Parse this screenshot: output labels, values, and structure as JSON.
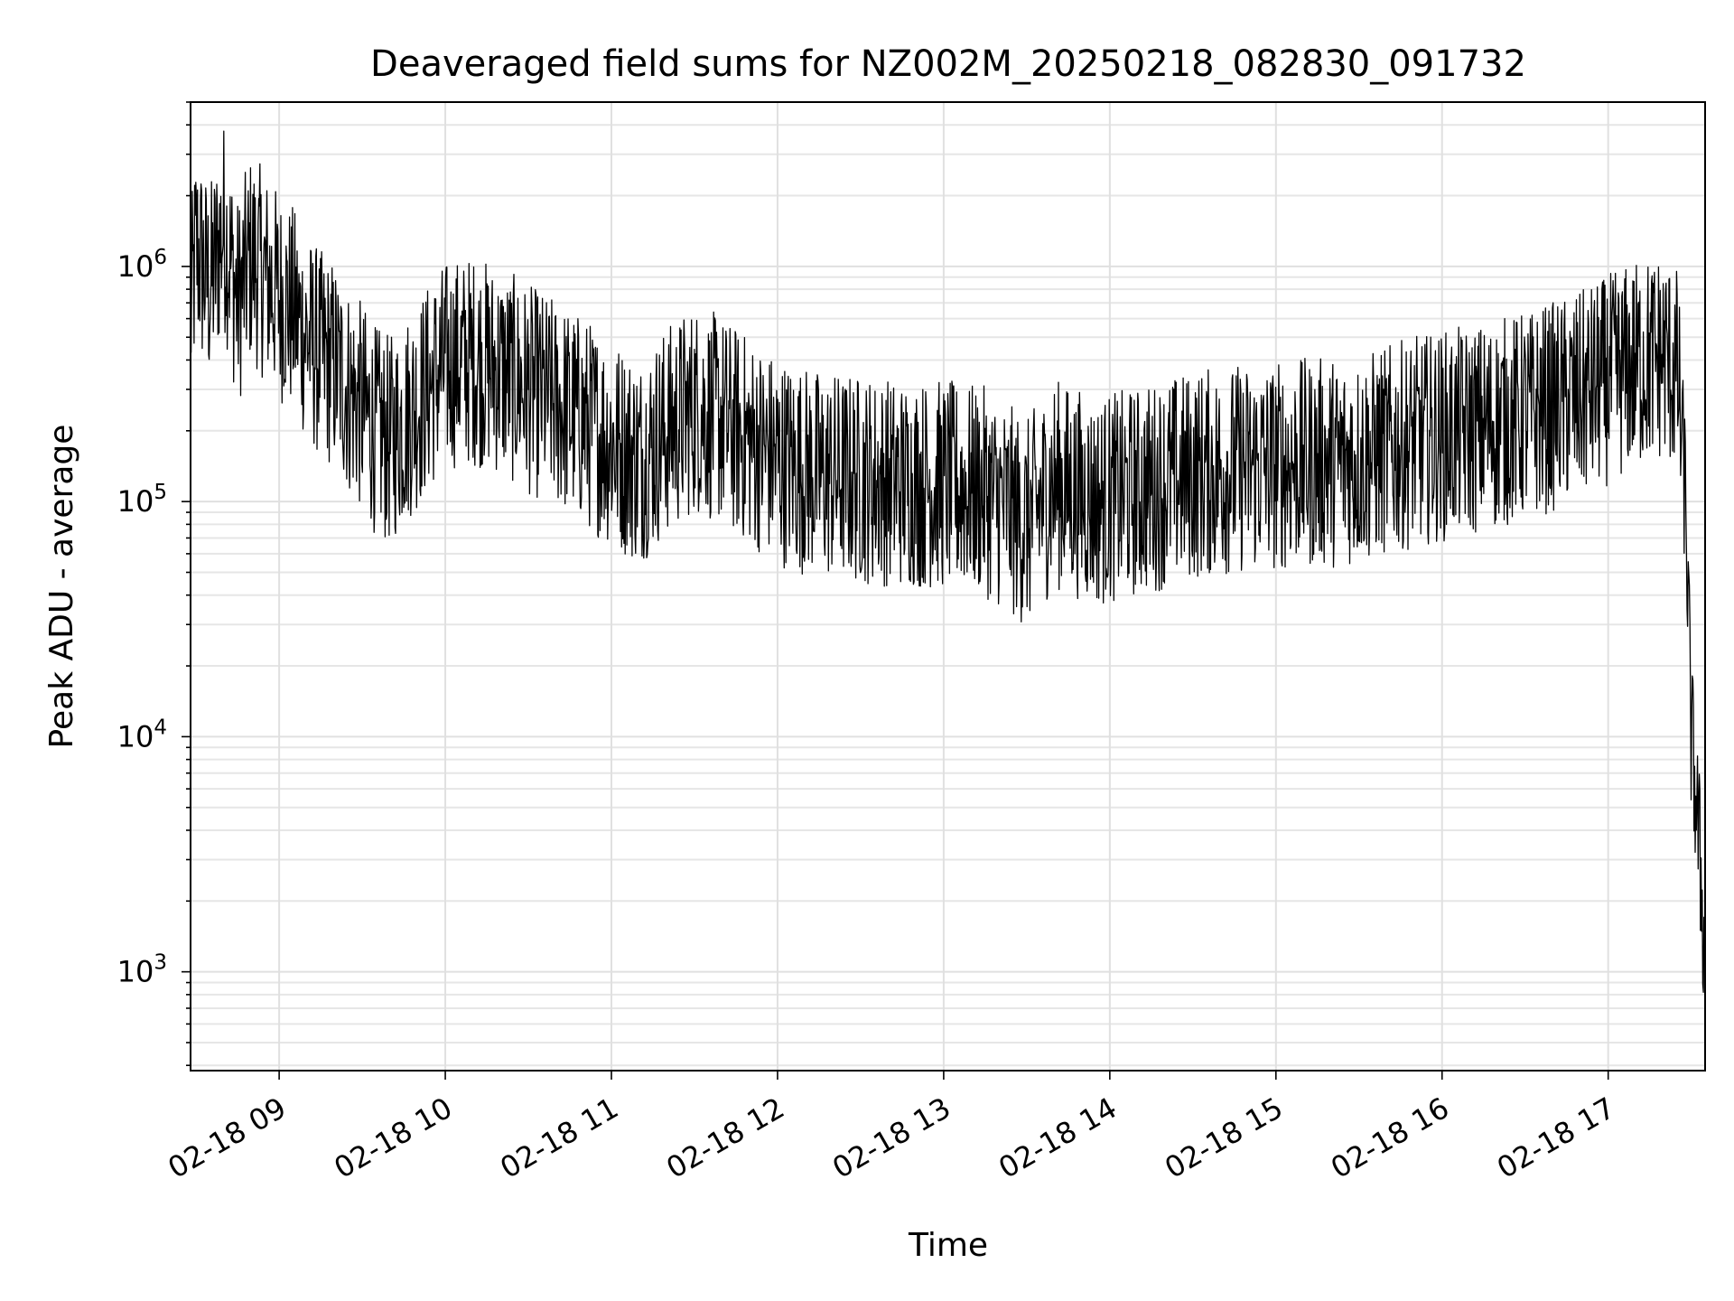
{
  "chart_data": {
    "type": "line",
    "title": "Deaveraged field sums for NZ002M_20250218_082830_091732",
    "xlabel": "Time",
    "ylabel": "Peak ADU - average",
    "yscale": "log",
    "xlim": [
      "2025-02-18 08:28",
      "2025-02-18 17:35"
    ],
    "ylim": [
      380,
      5000000
    ],
    "grid": true,
    "x_ticks": [
      "02-18 09",
      "02-18 10",
      "02-18 11",
      "02-18 12",
      "02-18 13",
      "02-18 14",
      "02-18 15",
      "02-18 16",
      "02-18 17"
    ],
    "y_ticks": [
      {
        "value": 1000,
        "base": "10",
        "exp": "3"
      },
      {
        "value": 10000,
        "base": "10",
        "exp": "4"
      },
      {
        "value": 100000,
        "base": "10",
        "exp": "5"
      },
      {
        "value": 1000000,
        "base": "10",
        "exp": "6"
      }
    ],
    "series": [
      {
        "color": "#000000",
        "points": [
          [
            "2025-02-18 08:28",
            600000
          ],
          [
            "2025-02-18 08:30",
            1200000
          ],
          [
            "2025-02-18 08:35",
            800000
          ],
          [
            "2025-02-18 08:40",
            1500000
          ],
          [
            "2025-02-18 08:45",
            700000
          ],
          [
            "2025-02-18 08:50",
            1100000
          ],
          [
            "2025-02-18 08:55",
            900000
          ],
          [
            "2025-02-18 09:00",
            750000
          ],
          [
            "2025-02-18 09:05",
            650000
          ],
          [
            "2025-02-18 09:10",
            500000
          ],
          [
            "2025-02-18 09:15",
            420000
          ],
          [
            "2025-02-18 09:20",
            380000
          ],
          [
            "2025-02-18 09:25",
            300000
          ],
          [
            "2025-02-18 09:30",
            250000
          ],
          [
            "2025-02-18 09:35",
            200000
          ],
          [
            "2025-02-18 09:40",
            180000
          ],
          [
            "2025-02-18 09:45",
            220000
          ],
          [
            "2025-02-18 09:50",
            260000
          ],
          [
            "2025-02-18 09:55",
            320000
          ],
          [
            "2025-02-18 10:00",
            380000
          ],
          [
            "2025-02-18 10:10",
            400000
          ],
          [
            "2025-02-18 10:20",
            360000
          ],
          [
            "2025-02-18 10:30",
            300000
          ],
          [
            "2025-02-18 10:40",
            260000
          ],
          [
            "2025-02-18 10:50",
            220000
          ],
          [
            "2025-02-18 11:00",
            180000
          ],
          [
            "2025-02-18 11:10",
            150000
          ],
          [
            "2025-02-18 11:20",
            200000
          ],
          [
            "2025-02-18 11:30",
            250000
          ],
          [
            "2025-02-18 11:40",
            220000
          ],
          [
            "2025-02-18 11:50",
            180000
          ],
          [
            "2025-02-18 12:00",
            150000
          ],
          [
            "2025-02-18 12:15",
            130000
          ],
          [
            "2025-02-18 12:30",
            125000
          ],
          [
            "2025-02-18 12:45",
            120000
          ],
          [
            "2025-02-18 13:00",
            118000
          ],
          [
            "2025-02-18 13:15",
            110000
          ],
          [
            "2025-02-18 13:25",
            90000
          ],
          [
            "2025-02-18 13:30",
            80000
          ],
          [
            "2025-02-18 13:40",
            120000
          ],
          [
            "2025-02-18 13:55",
            100000
          ],
          [
            "2025-02-18 14:10",
            110000
          ],
          [
            "2025-02-18 14:30",
            130000
          ],
          [
            "2025-02-18 14:50",
            140000
          ],
          [
            "2025-02-18 15:10",
            145000
          ],
          [
            "2025-02-18 15:30",
            150000
          ],
          [
            "2025-02-18 15:50",
            180000
          ],
          [
            "2025-02-18 16:10",
            200000
          ],
          [
            "2025-02-18 16:30",
            230000
          ],
          [
            "2025-02-18 16:50",
            280000
          ],
          [
            "2025-02-18 17:00",
            330000
          ],
          [
            "2025-02-18 17:10",
            380000
          ],
          [
            "2025-02-18 17:20",
            420000
          ],
          [
            "2025-02-18 17:25",
            350000
          ],
          [
            "2025-02-18 17:28",
            100000
          ],
          [
            "2025-02-18 17:30",
            10000
          ],
          [
            "2025-02-18 17:32",
            5000
          ],
          [
            "2025-02-18 17:34",
            2000
          ],
          [
            "2025-02-18 17:35",
            900
          ]
        ]
      }
    ]
  }
}
